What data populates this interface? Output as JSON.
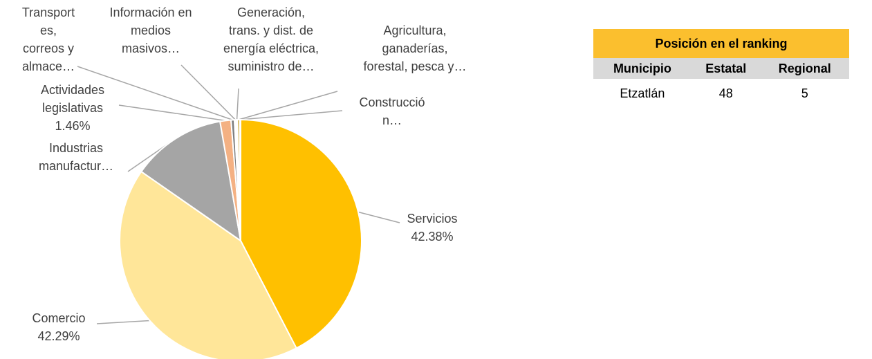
{
  "chart_data": {
    "type": "pie",
    "categories": [
      "Servicios",
      "Comercio",
      "Industrias\nmanufactur…",
      "Actividades\nlegislativas",
      "Transport\nes,\ncorreos y\nalmace…",
      "Información en\nmedios\nmasivos…",
      "Generación,\ntrans. y dist. de\nenergía eléctrica,\nsuministro de…",
      "Agricultura,\nganaderías,\nforestal, pesca y…",
      "Construcció\nn…"
    ],
    "values": [
      42.38,
      42.29,
      12.6,
      1.46,
      0.45,
      0.25,
      0.15,
      0.3,
      0.12
    ],
    "value_labels": [
      "42.38%",
      "42.29%",
      null,
      "1.46%",
      null,
      null,
      null,
      null,
      null
    ],
    "colors": [
      "#FFC000",
      "#FFE699",
      "#A5A5A5",
      "#F4B183",
      "#7F7F7F",
      "#FFFFFF",
      "#404040",
      "#BF9000",
      "#FFD966"
    ]
  },
  "table": {
    "title": "Posición en el ranking",
    "headers": [
      "Municipio",
      "Estatal",
      "Regional"
    ],
    "rows": [
      [
        "Etzatlán",
        "48",
        "5"
      ]
    ]
  }
}
